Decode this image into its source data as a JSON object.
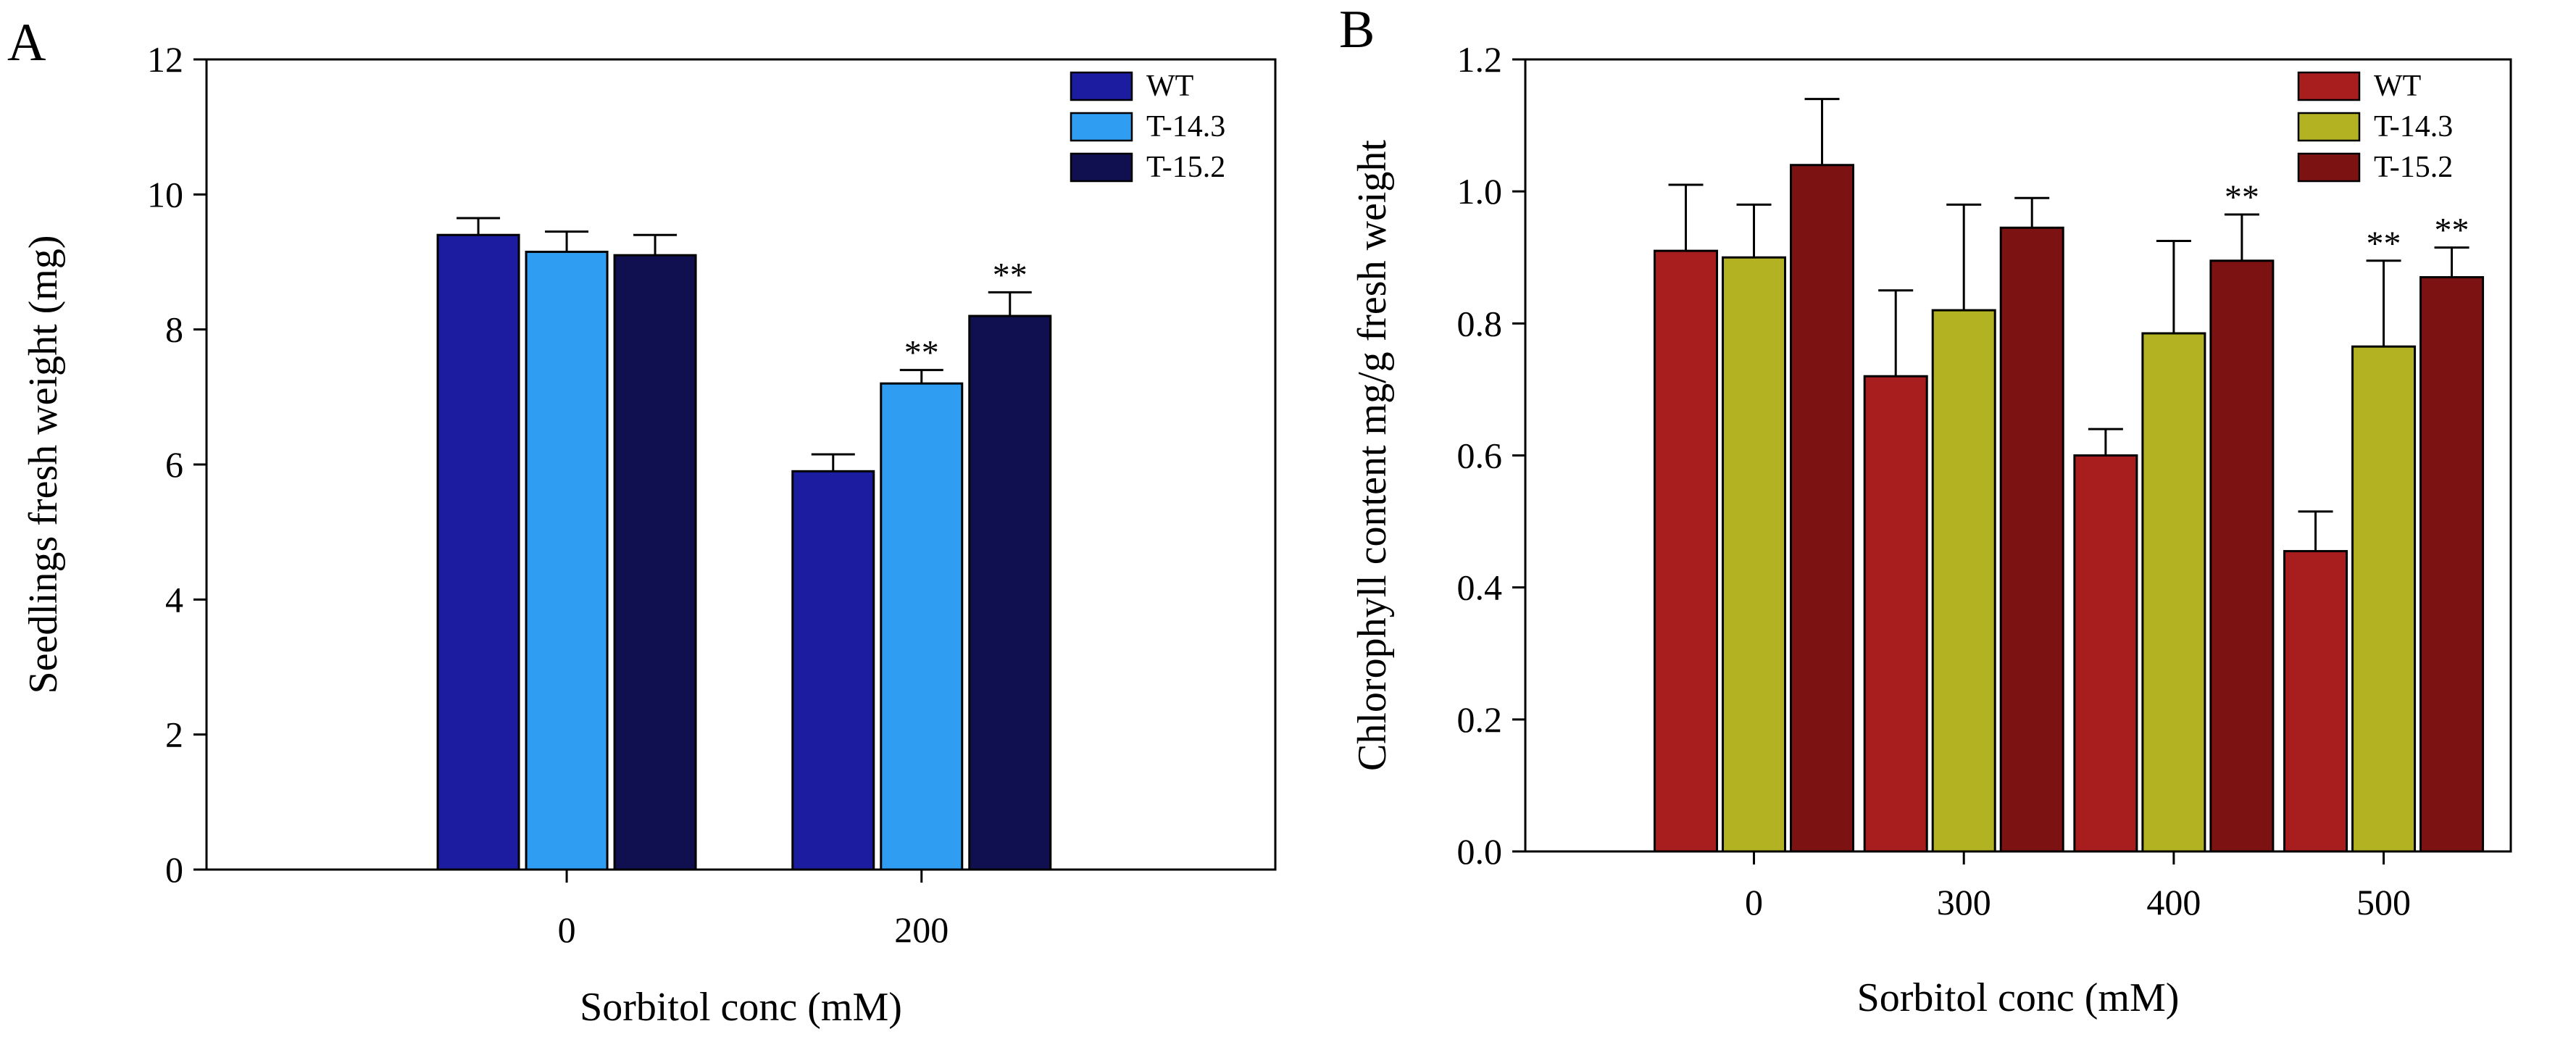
{
  "figure": {
    "panels": [
      {
        "label": "A"
      },
      {
        "label": "B"
      }
    ]
  },
  "chart_data": [
    {
      "type": "bar",
      "panel": "A",
      "title": "",
      "xlabel": "Sorbitol conc (mM)",
      "ylabel": "Seedlings fresh weight (mg)",
      "categories": [
        "0",
        "200"
      ],
      "ylim": [
        0,
        12
      ],
      "ytick_step": 2,
      "ytick_decimals": 0,
      "grid": false,
      "legend_position": "top-right",
      "significance_symbol": "**",
      "series": [
        {
          "name": "WT",
          "color": "#1c1ca0",
          "values": [
            9.4,
            5.9
          ],
          "errors": [
            0.25,
            0.25
          ],
          "sig": [
            "",
            ""
          ]
        },
        {
          "name": "T-14.3",
          "color": "#2f9ef2",
          "values": [
            9.15,
            7.2
          ],
          "errors": [
            0.3,
            0.2
          ],
          "sig": [
            "",
            "**"
          ]
        },
        {
          "name": "T-15.2",
          "color": "#101050",
          "values": [
            9.1,
            8.2
          ],
          "errors": [
            0.3,
            0.35
          ],
          "sig": [
            "",
            "**"
          ]
        }
      ]
    },
    {
      "type": "bar",
      "panel": "B",
      "title": "",
      "xlabel": "Sorbitol conc (mM)",
      "ylabel": "Chlorophyll content mg/g fresh weight",
      "categories": [
        "0",
        "300",
        "400",
        "500"
      ],
      "ylim": [
        0,
        1.2
      ],
      "ytick_step": 0.2,
      "ytick_decimals": 1,
      "grid": false,
      "legend_position": "top-right",
      "significance_symbol": "**",
      "series": [
        {
          "name": "WT",
          "color": "#a81d1d",
          "values": [
            0.91,
            0.72,
            0.6,
            0.455
          ],
          "errors": [
            0.1,
            0.13,
            0.04,
            0.06
          ],
          "sig": [
            "",
            "",
            "",
            ""
          ]
        },
        {
          "name": "T-14.3",
          "color": "#b2b222",
          "values": [
            0.9,
            0.82,
            0.785,
            0.765
          ],
          "errors": [
            0.08,
            0.16,
            0.14,
            0.13
          ],
          "sig": [
            "",
            "",
            "",
            "**"
          ]
        },
        {
          "name": "T-15.2",
          "color": "#7d1212",
          "values": [
            1.04,
            0.945,
            0.895,
            0.87
          ],
          "errors": [
            0.1,
            0.045,
            0.07,
            0.045
          ],
          "sig": [
            "",
            "",
            "**",
            "**"
          ]
        }
      ]
    }
  ]
}
